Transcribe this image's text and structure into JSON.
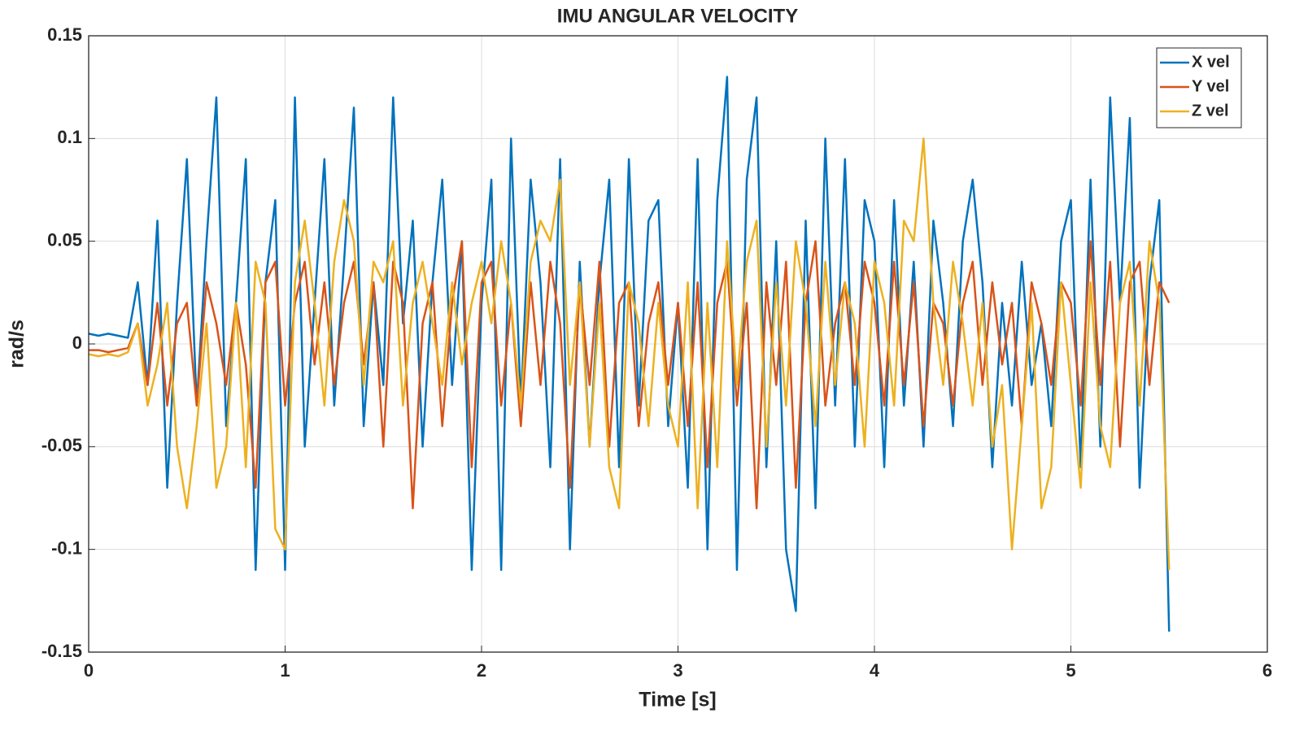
{
  "chart_data": {
    "type": "line",
    "title": "IMU ANGULAR VELOCITY",
    "x_label": "Time [s]",
    "y_label": "rad/s",
    "xlim": [
      0,
      6
    ],
    "xticks": [
      0,
      1,
      2,
      3,
      4,
      5,
      6
    ],
    "ylim": [
      -0.15,
      0.15
    ],
    "yticks": [
      -0.15,
      -0.1,
      -0.05,
      0,
      0.05,
      0.1,
      0.15
    ],
    "grid": true,
    "legend": "upper right",
    "x": [
      0,
      0.05,
      0.1,
      0.15,
      0.2,
      0.25,
      0.3,
      0.35,
      0.4,
      0.45,
      0.5,
      0.55,
      0.6,
      0.65,
      0.7,
      0.75,
      0.8,
      0.85,
      0.9,
      0.95,
      1,
      1.05,
      1.1,
      1.15,
      1.2,
      1.25,
      1.3,
      1.35,
      1.4,
      1.45,
      1.5,
      1.55,
      1.6,
      1.65,
      1.7,
      1.75,
      1.8,
      1.85,
      1.9,
      1.95,
      2,
      2.05,
      2.1,
      2.15,
      2.2,
      2.25,
      2.3,
      2.35,
      2.4,
      2.45,
      2.5,
      2.55,
      2.6,
      2.65,
      2.7,
      2.75,
      2.8,
      2.85,
      2.9,
      2.95,
      3,
      3.05,
      3.1,
      3.15,
      3.2,
      3.25,
      3.3,
      3.35,
      3.4,
      3.45,
      3.5,
      3.55,
      3.6,
      3.65,
      3.7,
      3.75,
      3.8,
      3.85,
      3.9,
      3.95,
      4,
      4.05,
      4.1,
      4.15,
      4.2,
      4.25,
      4.3,
      4.35,
      4.4,
      4.45,
      4.5,
      4.55,
      4.6,
      4.65,
      4.7,
      4.75,
      4.8,
      4.85,
      4.9,
      4.95,
      5,
      5.05,
      5.1,
      5.15,
      5.2,
      5.25,
      5.3,
      5.35,
      5.4,
      5.45,
      5.5
    ],
    "series": [
      {
        "name": "X vel",
        "color": "#0072bd",
        "values": [
          0.005,
          0.004,
          0.005,
          0.004,
          0.003,
          0.03,
          -0.02,
          0.06,
          -0.07,
          0.02,
          0.09,
          -0.03,
          0.05,
          0.12,
          -0.04,
          0.02,
          0.09,
          -0.11,
          0.03,
          0.07,
          -0.11,
          0.12,
          -0.05,
          0.02,
          0.09,
          -0.03,
          0.04,
          0.115,
          -0.04,
          0.03,
          -0.02,
          0.12,
          0.01,
          0.06,
          -0.05,
          0.03,
          0.08,
          -0.02,
          0.05,
          -0.11,
          0.02,
          0.08,
          -0.11,
          0.1,
          -0.03,
          0.08,
          0.03,
          -0.06,
          0.09,
          -0.1,
          0.04,
          -0.05,
          0.03,
          0.08,
          -0.06,
          0.09,
          -0.03,
          0.06,
          0.07,
          -0.04,
          0.02,
          -0.07,
          0.09,
          -0.1,
          0.07,
          0.13,
          -0.11,
          0.08,
          0.12,
          -0.06,
          0.05,
          -0.1,
          -0.13,
          0.06,
          -0.08,
          0.1,
          -0.03,
          0.09,
          -0.05,
          0.07,
          0.05,
          -0.06,
          0.07,
          -0.03,
          0.04,
          -0.05,
          0.06,
          0.02,
          -0.04,
          0.05,
          0.08,
          0.03,
          -0.06,
          0.02,
          -0.03,
          0.04,
          -0.02,
          0.01,
          -0.04,
          0.05,
          0.07,
          -0.06,
          0.08,
          -0.05,
          0.12,
          0.02,
          0.11,
          -0.07,
          0.03,
          0.07,
          -0.14
        ]
      },
      {
        "name": "Y vel",
        "color": "#d95319",
        "values": [
          -0.003,
          -0.003,
          -0.004,
          -0.003,
          -0.002,
          0.01,
          -0.02,
          0.02,
          -0.03,
          0.01,
          0.02,
          -0.03,
          0.03,
          0.01,
          -0.02,
          0.02,
          -0.01,
          -0.07,
          0.03,
          0.04,
          -0.03,
          0.02,
          0.04,
          -0.01,
          0.03,
          -0.02,
          0.02,
          0.04,
          -0.01,
          0.03,
          -0.05,
          0.04,
          0.02,
          -0.08,
          0.01,
          0.03,
          -0.04,
          0.02,
          0.05,
          -0.06,
          0.03,
          0.04,
          -0.03,
          0.02,
          -0.04,
          0.03,
          -0.02,
          0.04,
          0.01,
          -0.07,
          0.03,
          -0.02,
          0.04,
          -0.05,
          0.02,
          0.03,
          -0.04,
          0.01,
          0.03,
          -0.02,
          0.02,
          -0.04,
          0.03,
          -0.06,
          0.02,
          0.04,
          -0.03,
          0.02,
          -0.08,
          0.03,
          -0.02,
          0.04,
          -0.07,
          0.02,
          0.05,
          -0.03,
          0.01,
          0.03,
          -0.02,
          0.04,
          0.02,
          -0.03,
          0.04,
          -0.02,
          0.03,
          -0.04,
          0.02,
          0.01,
          -0.03,
          0.02,
          0.04,
          -0.02,
          0.03,
          -0.01,
          0.02,
          -0.04,
          0.03,
          0.01,
          -0.02,
          0.03,
          0.02,
          -0.03,
          0.05,
          -0.02,
          0.04,
          -0.05,
          0.03,
          0.04,
          -0.02,
          0.03,
          0.02
        ]
      },
      {
        "name": "Z vel",
        "color": "#edb120",
        "values": [
          -0.005,
          -0.006,
          -0.005,
          -0.006,
          -0.004,
          0.01,
          -0.03,
          -0.01,
          0.02,
          -0.05,
          -0.08,
          -0.04,
          0.01,
          -0.07,
          -0.05,
          0.02,
          -0.06,
          0.04,
          0.02,
          -0.09,
          -0.1,
          0.03,
          0.06,
          0.02,
          -0.03,
          0.04,
          0.07,
          0.05,
          -0.02,
          0.04,
          0.03,
          0.05,
          -0.03,
          0.02,
          0.04,
          0.01,
          -0.02,
          0.03,
          -0.01,
          0.02,
          0.04,
          0.01,
          0.05,
          0.02,
          -0.03,
          0.04,
          0.06,
          0.05,
          0.08,
          -0.02,
          0.03,
          -0.05,
          0.02,
          -0.06,
          -0.08,
          0.03,
          0.01,
          -0.04,
          0.02,
          -0.03,
          -0.05,
          0.03,
          -0.08,
          0.02,
          -0.06,
          0.05,
          -0.02,
          0.04,
          0.06,
          -0.05,
          0.03,
          -0.03,
          0.05,
          0.02,
          -0.04,
          0.04,
          -0.02,
          0.03,
          0.01,
          -0.05,
          0.04,
          0.02,
          -0.03,
          0.06,
          0.05,
          0.1,
          0.02,
          -0.02,
          0.04,
          0.01,
          -0.03,
          0.02,
          -0.05,
          -0.02,
          -0.1,
          -0.04,
          0.02,
          -0.08,
          -0.06,
          0.03,
          -0.02,
          -0.07,
          0.03,
          -0.04,
          -0.06,
          0.02,
          0.04,
          -0.03,
          0.05,
          0.02,
          -0.11
        ]
      }
    ]
  }
}
